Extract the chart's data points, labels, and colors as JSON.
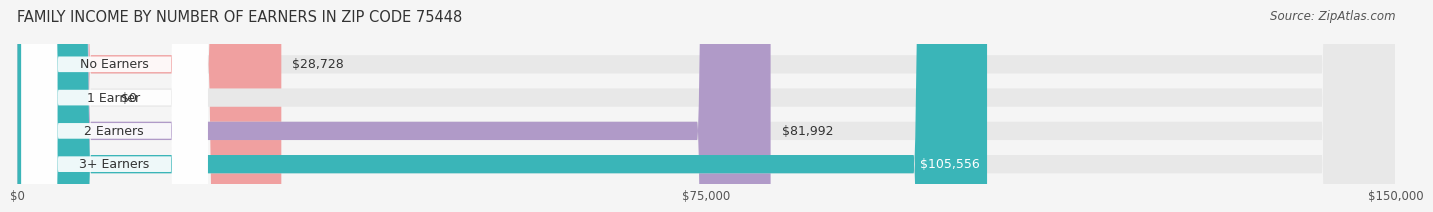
{
  "title": "FAMILY INCOME BY NUMBER OF EARNERS IN ZIP CODE 75448",
  "source": "Source: ZipAtlas.com",
  "categories": [
    "No Earners",
    "1 Earner",
    "2 Earners",
    "3+ Earners"
  ],
  "values": [
    28728,
    0,
    81992,
    105556
  ],
  "bar_colors": [
    "#f0a0a0",
    "#a8c4e0",
    "#b09ac8",
    "#3ab5b8"
  ],
  "label_colors": [
    "#333333",
    "#333333",
    "#333333",
    "#ffffff"
  ],
  "xlim": [
    0,
    150000
  ],
  "xticks": [
    0,
    75000,
    150000
  ],
  "xtick_labels": [
    "$0",
    "$75,000",
    "$150,000"
  ],
  "background_color": "#f5f5f5",
  "bar_background_color": "#e8e8e8",
  "title_fontsize": 10.5,
  "source_fontsize": 8.5,
  "label_fontsize": 9,
  "value_fontsize": 9,
  "category_fontsize": 9
}
